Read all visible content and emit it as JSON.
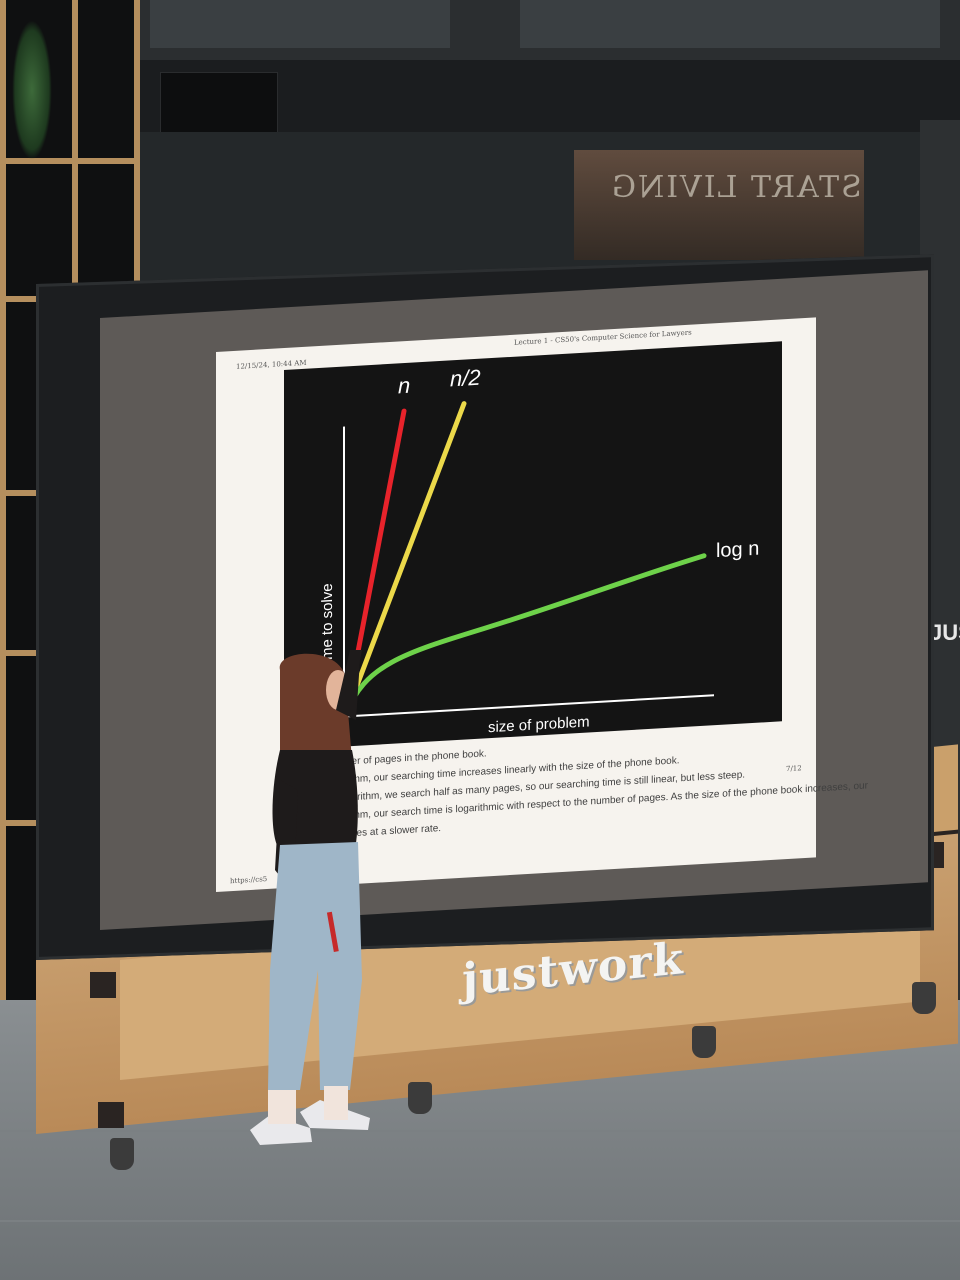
{
  "slide": {
    "header_left": "12/15/24, 10:44 AM",
    "header_center": "Lecture 1 - CS50's Computer Science for Lawyers",
    "page_number": "7/12",
    "footer_url": "https://cs5",
    "text_lines": [
      "ber of pages in the phone book.",
      "rithm, our searching time increases linearly with the size of the phone book.",
      "gorithm, we search half as many pages, so our searching time is still linear, but less steep.",
      "rithm, our search time is logarithmic with respect to the number of pages. As the size of the phone book increases, our",
      "ases at a slower rate."
    ]
  },
  "chart_data": {
    "type": "line",
    "xlabel": "size of problem",
    "ylabel": "time to solve",
    "series": [
      {
        "name": "n",
        "color": "#e8232b"
      },
      {
        "name": "n/2",
        "color": "#ecd94a"
      },
      {
        "name": "log n",
        "color": "#6ed24a"
      }
    ],
    "background": "#141414",
    "axis_color": "#ffffff"
  },
  "venue": {
    "stage_logo": "justwork",
    "glass_sign": "START LIVING",
    "column_sign": "JUST"
  }
}
